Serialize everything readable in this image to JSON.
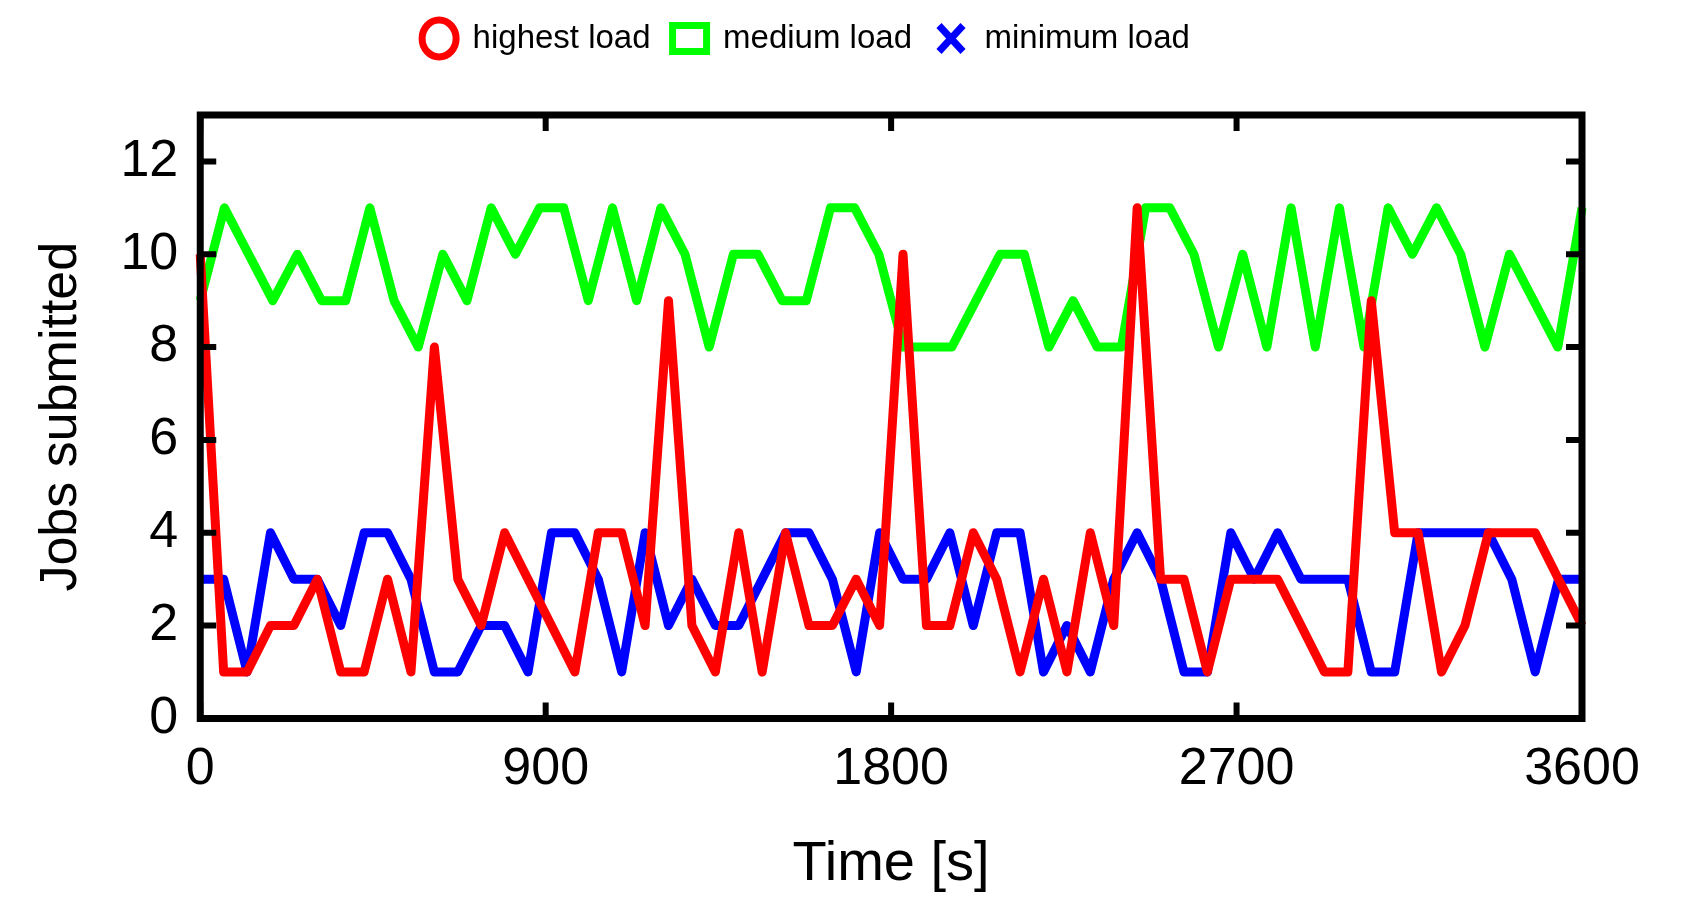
{
  "chart_data": {
    "type": "line",
    "xlabel": "Time [s]",
    "ylabel": "Jobs submitted",
    "xlim": [
      0,
      3600
    ],
    "xticks": [
      0,
      900,
      1800,
      2700,
      3600
    ],
    "ylim": [
      0,
      13
    ],
    "yticks": [
      0,
      2,
      4,
      6,
      8,
      10,
      12
    ],
    "grid": false,
    "legend": "top",
    "line_style": "solid",
    "series": [
      {
        "name": "highest load",
        "color": "#ff0000",
        "x": [
          0,
          61,
          122,
          183,
          244,
          305,
          366,
          427,
          488,
          549,
          610,
          671,
          732,
          793,
          854,
          915,
          976,
          1037,
          1098,
          1159,
          1220,
          1281,
          1342,
          1403,
          1464,
          1525,
          1586,
          1647,
          1709,
          1770,
          1831,
          1892,
          1953,
          2014,
          2075,
          2136,
          2197,
          2258,
          2319,
          2380,
          2441,
          2502,
          2563,
          2624,
          2685,
          2746,
          2807,
          2868,
          2929,
          2990,
          3051,
          3112,
          3173,
          3234,
          3295,
          3356,
          3417,
          3478,
          3539,
          3600
        ],
        "values": [
          10,
          1,
          1,
          2,
          2,
          3,
          1,
          1,
          3,
          1,
          8,
          3,
          2,
          4,
          3,
          2,
          1,
          4,
          4,
          2,
          9,
          2,
          1,
          4,
          1,
          4,
          2,
          2,
          3,
          2,
          10,
          2,
          2,
          4,
          3,
          1,
          3,
          1,
          4,
          2,
          11,
          3,
          3,
          1,
          3,
          3,
          3,
          2,
          1,
          1,
          9,
          4,
          4,
          1,
          2,
          4,
          4,
          4,
          3,
          2
        ]
      },
      {
        "name": "medium load",
        "color": "#00ff00",
        "x": [
          0,
          63,
          126,
          189,
          253,
          316,
          379,
          442,
          505,
          568,
          632,
          695,
          758,
          821,
          884,
          947,
          1011,
          1074,
          1137,
          1200,
          1263,
          1326,
          1389,
          1453,
          1516,
          1579,
          1642,
          1705,
          1768,
          1832,
          1895,
          1958,
          2021,
          2084,
          2147,
          2211,
          2274,
          2337,
          2400,
          2463,
          2526,
          2589,
          2653,
          2716,
          2779,
          2842,
          2905,
          2968,
          3032,
          3095,
          3158,
          3221,
          3284,
          3347,
          3411,
          3474,
          3537,
          3600
        ],
        "values": [
          9,
          11,
          10,
          9,
          10,
          9,
          9,
          11,
          9,
          8,
          10,
          9,
          11,
          10,
          11,
          11,
          9,
          11,
          9,
          11,
          10,
          8,
          10,
          10,
          9,
          9,
          11,
          11,
          10,
          8,
          8,
          8,
          9,
          10,
          10,
          8,
          9,
          8,
          8,
          11,
          11,
          10,
          8,
          10,
          8,
          11,
          8,
          11,
          8,
          11,
          10,
          11,
          10,
          8,
          10,
          9,
          8,
          11
        ]
      },
      {
        "name": "minimum load",
        "color": "#0000ff",
        "x": [
          0,
          61,
          122,
          183,
          244,
          305,
          366,
          427,
          488,
          549,
          610,
          671,
          732,
          793,
          854,
          915,
          976,
          1037,
          1098,
          1159,
          1220,
          1281,
          1342,
          1403,
          1464,
          1525,
          1586,
          1647,
          1709,
          1770,
          1831,
          1892,
          1953,
          2014,
          2075,
          2136,
          2197,
          2258,
          2319,
          2380,
          2441,
          2502,
          2563,
          2624,
          2685,
          2746,
          2807,
          2868,
          2929,
          2990,
          3051,
          3112,
          3173,
          3234,
          3295,
          3356,
          3417,
          3478,
          3539,
          3600
        ],
        "values": [
          3,
          3,
          1,
          4,
          3,
          3,
          2,
          4,
          4,
          3,
          1,
          1,
          2,
          2,
          1,
          4,
          4,
          3,
          1,
          4,
          2,
          3,
          2,
          2,
          3,
          4,
          4,
          3,
          1,
          4,
          3,
          3,
          4,
          2,
          4,
          4,
          1,
          2,
          1,
          3,
          4,
          3,
          1,
          1,
          4,
          3,
          4,
          3,
          3,
          3,
          1,
          1,
          4,
          4,
          4,
          4,
          3,
          1,
          3,
          3
        ]
      }
    ]
  }
}
